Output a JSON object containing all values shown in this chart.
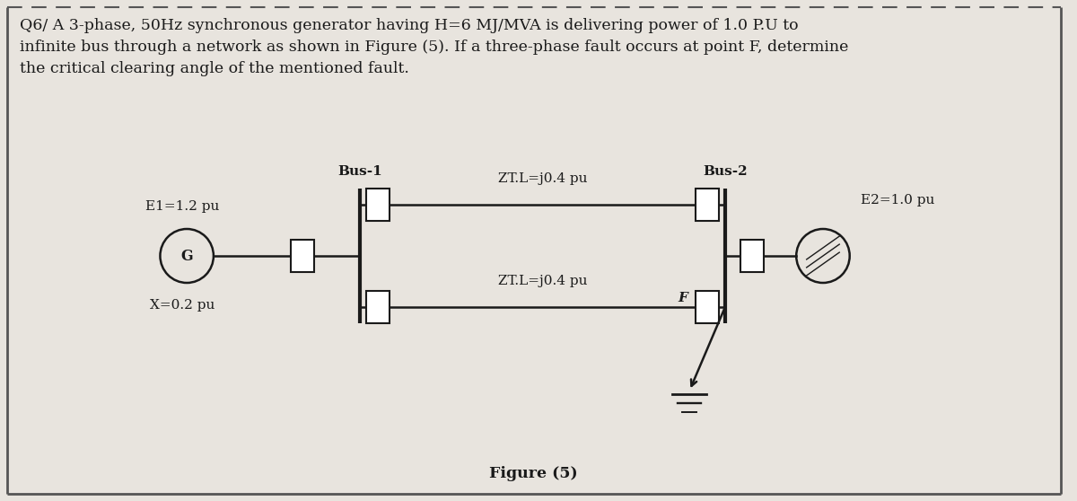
{
  "bg_color": "#e8e4de",
  "inner_bg": "#ece8e2",
  "border_color": "#555555",
  "title_text": "Q6/ A 3-phase, 50Hz synchronous generator having H=6 MJ/MVA is delivering power of 1.0 P.U to\ninfinite bus through a network as shown in Figure (5). If a three-phase fault occurs at point F, determine\nthe critical clearing angle of the mentioned fault.",
  "figure_label": "Figure (5)",
  "bus1_label": "Bus-1",
  "bus2_label": "Bus-2",
  "e1_label": "E1=1.2 pu",
  "e2_label": "E2=1.0 pu",
  "x_label": "X=0.2 pu",
  "ztl_top_label": "ZT.L=j0.4 pu",
  "ztl_bot_label": "ZT.L=j0.4 pu",
  "f_label": "F",
  "g_label": "G",
  "line_color": "#1a1a1a",
  "text_color": "#1a1a1a",
  "dash_color": "#555555",
  "title_fontsize": 12.5,
  "label_fontsize": 11.0,
  "fig_label_fontsize": 12.5
}
